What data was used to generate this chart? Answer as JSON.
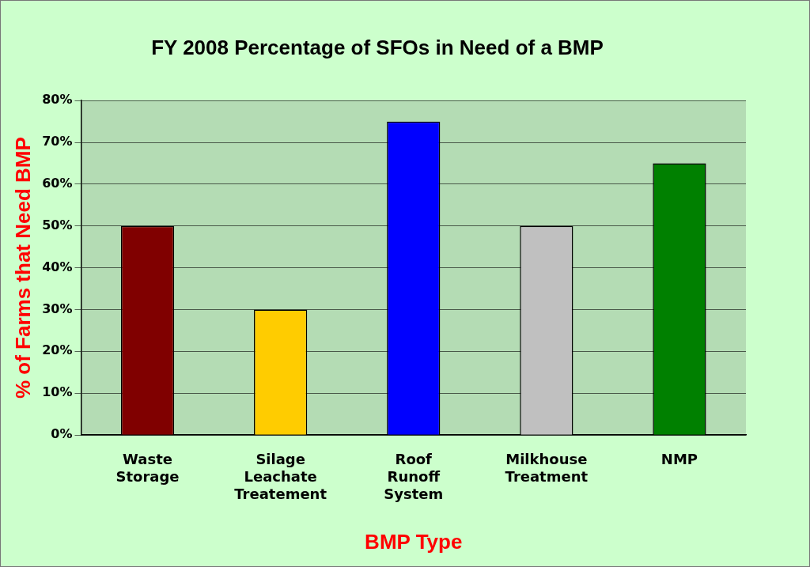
{
  "chart_data": {
    "type": "bar",
    "title": "FY 2008 Percentage of SFOs in Need of a BMP",
    "xlabel": "BMP Type",
    "ylabel": "% of Farms that Need BMP",
    "categories": [
      "Waste Storage",
      "Silage Leachate Treatement",
      "Roof Runoff System",
      "Milkhouse Treatment",
      "NMP"
    ],
    "values": [
      50,
      30,
      75,
      50,
      65
    ],
    "colors": [
      "#800000",
      "#ffcc00",
      "#0000ff",
      "#c0c0c0",
      "#008000"
    ],
    "ylim": [
      0,
      80
    ],
    "yticks": [
      {
        "value": 0,
        "label": "0%"
      },
      {
        "value": 10,
        "label": "10%"
      },
      {
        "value": 20,
        "label": "20%"
      },
      {
        "value": 30,
        "label": "30%"
      },
      {
        "value": 40,
        "label": "40%"
      },
      {
        "value": 50,
        "label": "50%"
      },
      {
        "value": 60,
        "label": "60%"
      },
      {
        "value": 70,
        "label": "70%"
      },
      {
        "value": 80,
        "label": "80%"
      }
    ],
    "grid": "y",
    "legend": false
  }
}
